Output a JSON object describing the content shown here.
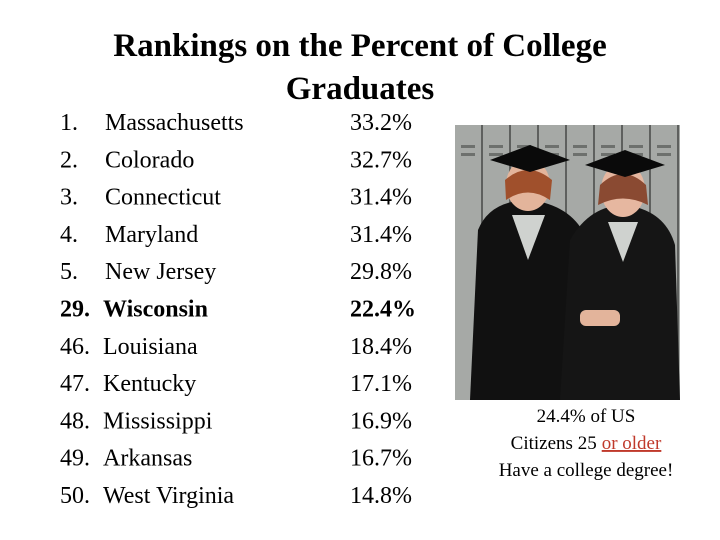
{
  "title": "Rankings on the Percent of College Graduates",
  "rows": [
    {
      "rank": "1.",
      "state": "Massachusetts",
      "percent": "33.2%",
      "bold": false
    },
    {
      "rank": "2.",
      "state": "Colorado",
      "percent": "32.7%",
      "bold": false
    },
    {
      "rank": "3.",
      "state": "Connecticut",
      "percent": "31.4%",
      "bold": false
    },
    {
      "rank": "4.",
      "state": "Maryland",
      "percent": "31.4%",
      "bold": false
    },
    {
      "rank": "5.",
      "state": "New Jersey",
      "percent": "29.8%",
      "bold": false
    },
    {
      "rank": "29.",
      "state": "Wisconsin",
      "percent": "22.4%",
      "bold": true
    },
    {
      "rank": "46.",
      "state": "Louisiana",
      "percent": "18.4%",
      "bold": false
    },
    {
      "rank": "47.",
      "state": "Kentucky",
      "percent": "17.1%",
      "bold": false
    },
    {
      "rank": "48.",
      "state": "Mississippi",
      "percent": "16.9%",
      "bold": false
    },
    {
      "rank": "49.",
      "state": "Arkansas",
      "percent": "16.7%",
      "bold": false
    },
    {
      "rank": "50.",
      "state": "West Virginia",
      "percent": "14.8%",
      "bold": false
    }
  ],
  "caption": {
    "line1": "24.4% of US",
    "line2": "Citizens 25",
    "line2_emphasis": "or older",
    "line3": "Have a college degree!"
  }
}
